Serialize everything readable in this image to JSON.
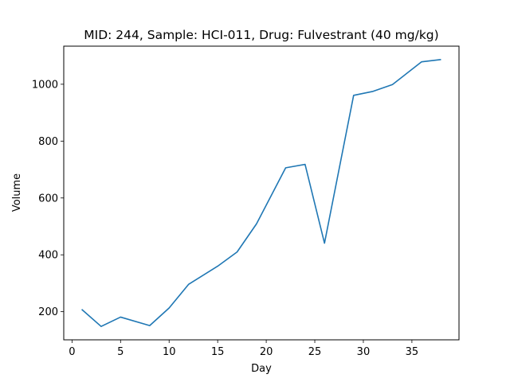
{
  "chart_data": {
    "type": "line",
    "title": "MID: 244, Sample: HCI-011, Drug: Fulvestrant (40 mg/kg)",
    "xlabel": "Day",
    "ylabel": "Volume",
    "xlim": [
      -0.85,
      39.85
    ],
    "ylim": [
      101,
      1134
    ],
    "xticks": [
      0,
      5,
      10,
      15,
      20,
      25,
      30,
      35
    ],
    "yticks": [
      200,
      400,
      600,
      800,
      1000
    ],
    "grid": false,
    "legend": "none",
    "series": [
      {
        "color": "#1f77b4",
        "x": [
          1,
          3,
          5,
          8,
          10,
          12,
          15,
          17,
          19,
          22,
          24,
          26,
          29,
          31,
          33,
          36,
          38
        ],
        "y": [
          208,
          148,
          181,
          151,
          213,
          296,
          360,
          410,
          509,
          706,
          718,
          441,
          961,
          975,
          999,
          1079,
          1087
        ]
      }
    ]
  }
}
